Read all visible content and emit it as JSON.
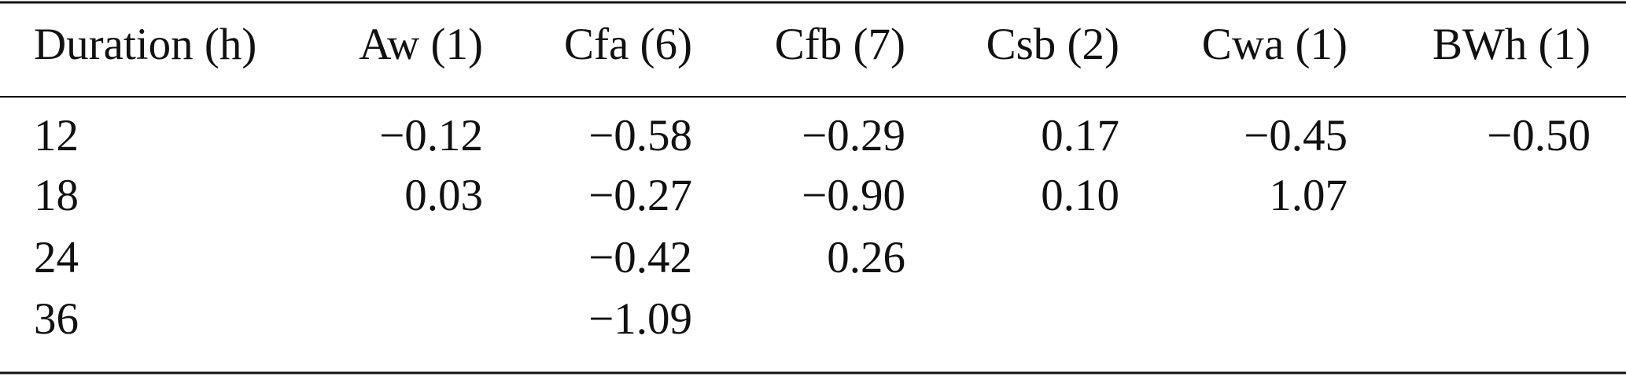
{
  "table": {
    "header": [
      "Duration (h)",
      "Aw (1)",
      "Cfa (6)",
      "Cfb (7)",
      "Csb (2)",
      "Cwa (1)",
      "BWh (1)"
    ],
    "rows": [
      [
        "12",
        "−0.12",
        "−0.58",
        "−0.29",
        "0.17",
        "−0.45",
        "−0.50"
      ],
      [
        "18",
        "0.03",
        "−0.27",
        "−0.90",
        "0.10",
        "1.07",
        null
      ],
      [
        "24",
        null,
        "−0.42",
        "0.26",
        null,
        null,
        null
      ],
      [
        "36",
        null,
        "−1.09",
        null,
        null,
        null,
        null
      ]
    ]
  }
}
